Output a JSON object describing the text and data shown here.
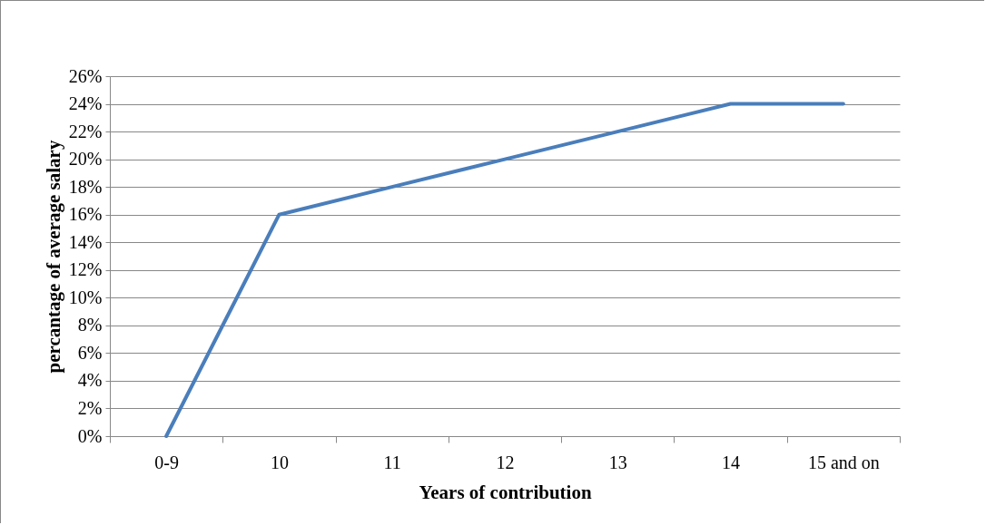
{
  "chart_data": {
    "type": "line",
    "xlabel": "Years of contribution",
    "ylabel": "percantage of average salary",
    "categories": [
      "0-9",
      "10",
      "11",
      "12",
      "13",
      "14",
      "15 and on"
    ],
    "series": [
      {
        "color": "#4a7ebb",
        "values": [
          0,
          16,
          18,
          20,
          22,
          24,
          24
        ]
      }
    ],
    "ylim": [
      0,
      26
    ],
    "yticks": [
      {
        "value": 0,
        "label": "0%"
      },
      {
        "value": 2,
        "label": "2%"
      },
      {
        "value": 4,
        "label": "4%"
      },
      {
        "value": 6,
        "label": "6%"
      },
      {
        "value": 8,
        "label": "8%"
      },
      {
        "value": 10,
        "label": "10%"
      },
      {
        "value": 12,
        "label": "12%"
      },
      {
        "value": 14,
        "label": "14%"
      },
      {
        "value": 16,
        "label": "16%"
      },
      {
        "value": 18,
        "label": "18%"
      },
      {
        "value": 20,
        "label": "20%"
      },
      {
        "value": 22,
        "label": "22%"
      },
      {
        "value": 24,
        "label": "24%"
      },
      {
        "value": 26,
        "label": "26%"
      }
    ],
    "grid": "y",
    "marker": "none",
    "line_style": "solid"
  }
}
